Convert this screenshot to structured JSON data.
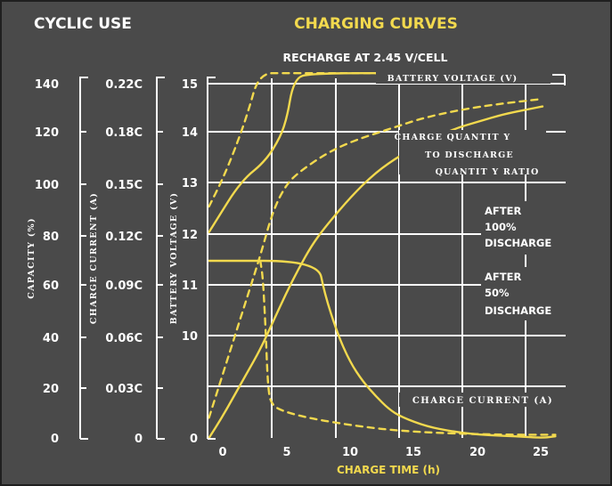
{
  "header": {
    "left_title": "CYCLIC USE",
    "main_title": "CHARGING CURVES",
    "subtitle": "RECHARGE AT 2.45 V/CELL"
  },
  "colors": {
    "background": "#4a4a4a",
    "frame": "#1f1f1f",
    "accent": "#f2d94e",
    "grid": "#ffffff",
    "text": "#ffffff"
  },
  "chart_data": {
    "type": "line",
    "title": "CHARGING CURVES",
    "subtitle": "RECHARGE AT 2.45 V/CELL",
    "xlabel": "CHARGE TIME (h)",
    "xlim": [
      -2,
      27
    ],
    "x_ticks": [
      "0",
      "5",
      "10",
      "15",
      "20",
      "25"
    ],
    "x_tick_values": [
      0,
      5,
      10,
      15,
      20,
      25
    ],
    "grid": true,
    "axes": [
      {
        "label": "CAPACITY (%)",
        "ticks": [
          "0",
          "20",
          "40",
          "60",
          "80",
          "100",
          "120",
          "140"
        ],
        "ylim": [
          0,
          140
        ]
      },
      {
        "label": "CHARGE CURRENT (A)",
        "ticks": [
          "0",
          "0.03C",
          "0.06C",
          "0.09C",
          "0.12C",
          "0.15C",
          "0.18C",
          "0.22C"
        ],
        "ylim": [
          0,
          0.22
        ]
      },
      {
        "label": "BATTERY VOLTAGE (V)",
        "ticks": [
          "0",
          "10",
          "11",
          "12",
          "13",
          "14",
          "15"
        ]
      }
    ],
    "annotations": {
      "battery_voltage": "BATTERY VOLTAGE (V)",
      "charge_quantity": [
        "CHARGE QUANTIT Y",
        "TO DISCHARGE",
        "QUANTIT Y RATIO"
      ],
      "after_100": [
        "AFTER",
        "100%",
        "DISCHARGE"
      ],
      "after_50": [
        "AFTER",
        "50%",
        "DISCHARGE"
      ],
      "charge_current": "CHARGE CURRENT (A)"
    },
    "series": [
      {
        "group": "battery voltage",
        "condition": "after 100% discharge",
        "style": "solid",
        "unit": "V",
        "points": [
          [
            -1,
            12.0
          ],
          [
            0,
            12.4
          ],
          [
            1,
            12.8
          ],
          [
            2,
            13.1
          ],
          [
            3,
            13.3
          ],
          [
            4,
            13.6
          ],
          [
            5,
            14.1
          ],
          [
            5.6,
            15.0
          ],
          [
            7,
            15.1
          ],
          [
            15,
            15.1
          ],
          [
            25,
            15.1
          ]
        ]
      },
      {
        "group": "battery voltage",
        "condition": "after 50% discharge",
        "style": "dashed",
        "unit": "V",
        "points": [
          [
            -1,
            12.5
          ],
          [
            0,
            13.0
          ],
          [
            1,
            13.6
          ],
          [
            2,
            14.3
          ],
          [
            2.9,
            15.1
          ],
          [
            5,
            15.1
          ],
          [
            15,
            15.1
          ],
          [
            25,
            15.1
          ]
        ]
      },
      {
        "group": "charge quantity to discharge quantity ratio",
        "condition": "after 100% discharge",
        "style": "solid",
        "unit": "%",
        "points": [
          [
            -1,
            0
          ],
          [
            0,
            8
          ],
          [
            1,
            17
          ],
          [
            2,
            26
          ],
          [
            3,
            35
          ],
          [
            4,
            46
          ],
          [
            5,
            57
          ],
          [
            6,
            67
          ],
          [
            7,
            76
          ],
          [
            8,
            83
          ],
          [
            10,
            95
          ],
          [
            12,
            105
          ],
          [
            14,
            112
          ],
          [
            16,
            117
          ],
          [
            18,
            122
          ],
          [
            20,
            125
          ],
          [
            22,
            128
          ],
          [
            24,
            130
          ],
          [
            25,
            131
          ]
        ]
      },
      {
        "group": "charge quantity to discharge quantity ratio",
        "condition": "after 50% discharge",
        "style": "dashed",
        "unit": "%",
        "points": [
          [
            -1,
            8
          ],
          [
            0,
            24
          ],
          [
            1,
            40
          ],
          [
            2,
            56
          ],
          [
            3,
            72
          ],
          [
            4,
            90
          ],
          [
            5,
            100
          ],
          [
            6,
            105
          ],
          [
            8,
            112
          ],
          [
            10,
            117
          ],
          [
            13,
            122
          ],
          [
            16,
            127
          ],
          [
            20,
            131
          ],
          [
            25,
            134
          ]
        ]
      },
      {
        "group": "charge current",
        "condition": "after 100% discharge",
        "style": "solid",
        "unit": "C",
        "points": [
          [
            -1,
            0.11
          ],
          [
            7.5,
            0.11
          ],
          [
            8,
            0.09
          ],
          [
            9,
            0.065
          ],
          [
            10,
            0.047
          ],
          [
            11,
            0.035
          ],
          [
            12,
            0.026
          ],
          [
            13,
            0.018
          ],
          [
            14,
            0.013
          ],
          [
            16,
            0.007
          ],
          [
            18,
            0.004
          ],
          [
            20,
            0.002
          ],
          [
            23,
            0.001
          ],
          [
            25,
            0.0
          ],
          [
            26,
            0.001
          ]
        ]
      },
      {
        "group": "charge current",
        "condition": "after 50% discharge",
        "style": "dashed",
        "unit": "C",
        "points": [
          [
            3,
            0.11
          ],
          [
            3.2,
            0.1
          ],
          [
            3.4,
            0.07
          ],
          [
            3.6,
            0.03
          ],
          [
            3.9,
            0.02
          ],
          [
            5,
            0.016
          ],
          [
            7,
            0.012
          ],
          [
            10,
            0.008
          ],
          [
            13,
            0.005
          ],
          [
            17,
            0.003
          ],
          [
            22,
            0.002
          ],
          [
            26,
            0.002
          ]
        ]
      }
    ]
  }
}
